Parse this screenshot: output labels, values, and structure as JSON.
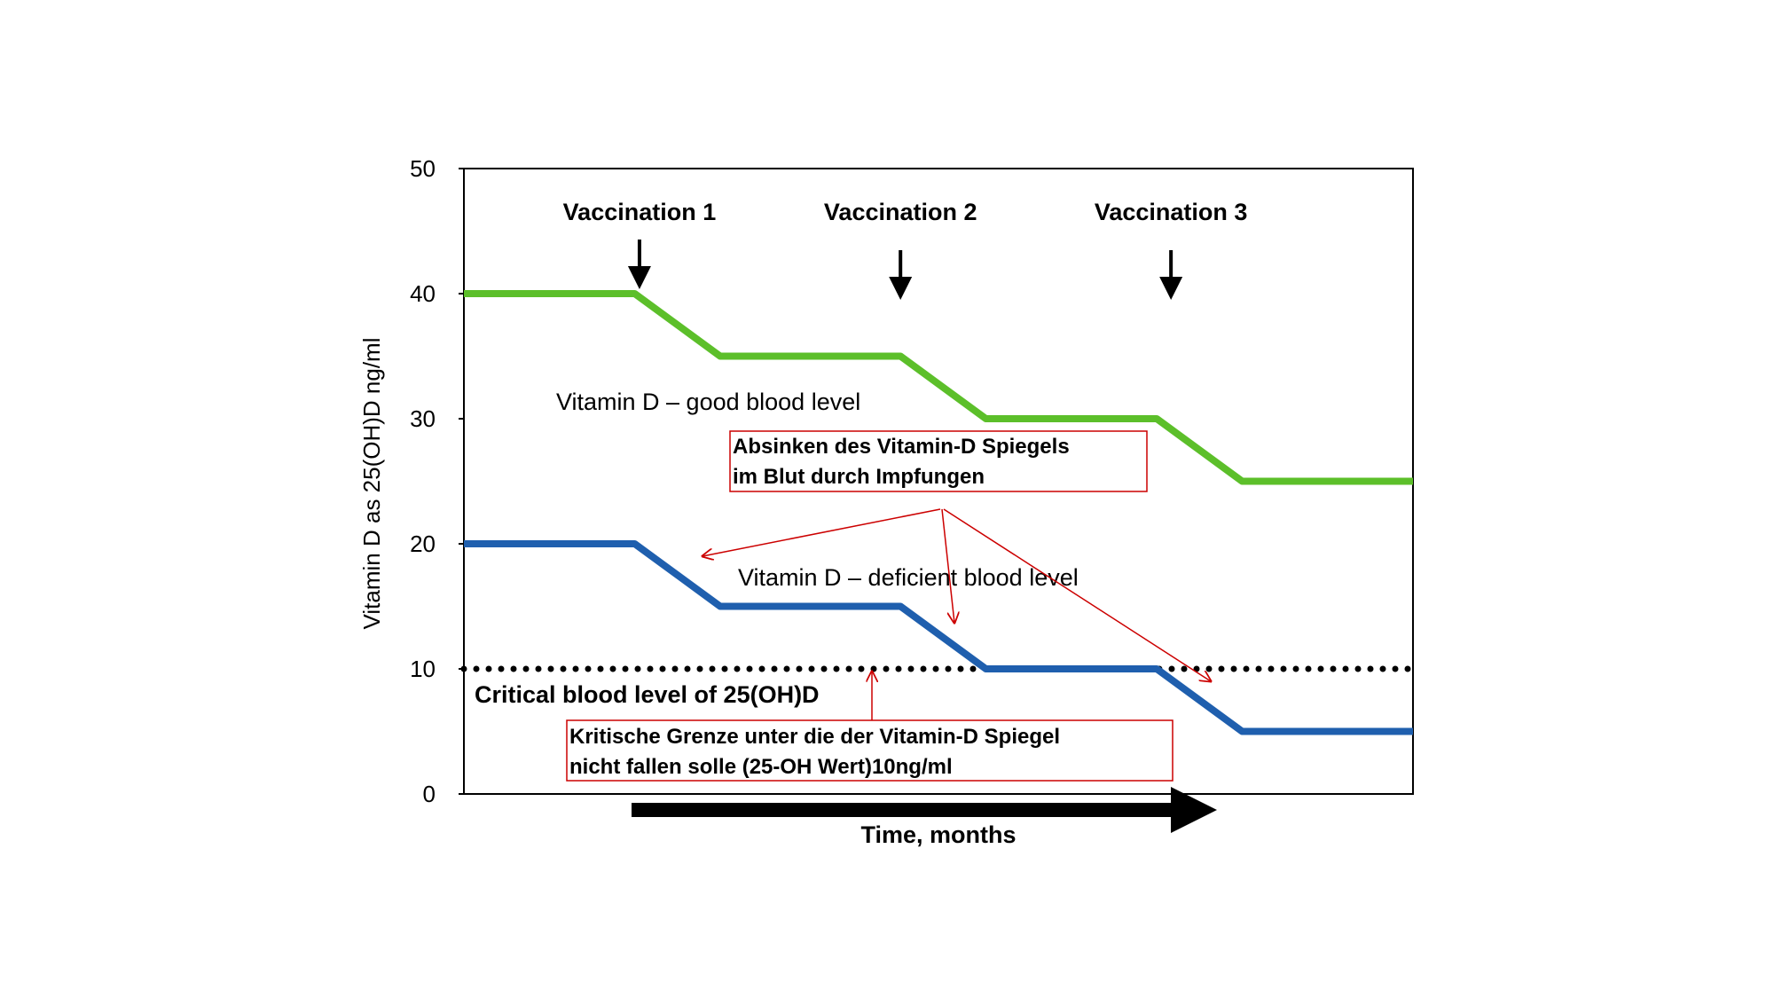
{
  "chart_data": {
    "type": "line",
    "title": "",
    "xlabel": "Time, months",
    "ylabel": "Vitamin D as 25(OH)D ng/ml",
    "ylim": [
      0,
      50
    ],
    "yticks": [
      0,
      10,
      20,
      30,
      40,
      50
    ],
    "grid": false,
    "x_tick_labels": false,
    "series": [
      {
        "name": "Vitamin D – good blood level",
        "color": "#5cbf2a",
        "points": [
          [
            0,
            40
          ],
          [
            0.18,
            40
          ],
          [
            0.27,
            35
          ],
          [
            0.46,
            35
          ],
          [
            0.55,
            30
          ],
          [
            0.73,
            30
          ],
          [
            0.82,
            25
          ],
          [
            1.0,
            25
          ]
        ]
      },
      {
        "name": "Vitamin D – deficient blood level",
        "color": "#1f5fae",
        "points": [
          [
            0,
            20
          ],
          [
            0.18,
            20
          ],
          [
            0.27,
            15
          ],
          [
            0.46,
            15
          ],
          [
            0.55,
            10
          ],
          [
            0.73,
            10
          ],
          [
            0.82,
            5
          ],
          [
            1.0,
            5
          ]
        ]
      }
    ],
    "reference_lines": [
      {
        "y": 10,
        "style": "dotted",
        "label": "Critical blood level of 25(OH)D"
      }
    ],
    "vaccinations": [
      {
        "label": "Vaccination 1",
        "x": 0.185
      },
      {
        "label": "Vaccination 2",
        "x": 0.46
      },
      {
        "label": "Vaccination 3",
        "x": 0.745
      }
    ],
    "annotations": [
      {
        "lines": [
          "Absinken des Vitamin-D Spiegels",
          "im Blut durch Impfungen"
        ],
        "color": "#c00000"
      },
      {
        "lines": [
          "Kritische Grenze unter die der Vitamin-D Spiegel",
          "nicht fallen solle (25-OH Wert)10ng/ml"
        ],
        "color": "#c00000"
      }
    ]
  }
}
